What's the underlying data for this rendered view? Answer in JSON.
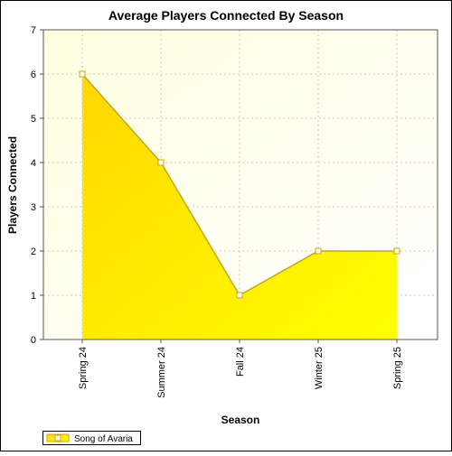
{
  "chart_data": {
    "type": "area",
    "title": "Average Players Connected By Season",
    "xlabel": "Season",
    "ylabel": "Players Connected",
    "categories": [
      "Spring 24",
      "Summer 24",
      "Fall 24",
      "Winter 25",
      "Spring 25"
    ],
    "series": [
      {
        "name": "Song of Avaria",
        "values": [
          6,
          4,
          1,
          2,
          2
        ]
      }
    ],
    "ylim": [
      0,
      7
    ],
    "yticks": [
      0,
      1,
      2,
      3,
      4,
      5,
      6,
      7
    ],
    "grid": true,
    "legend_position": "bottom-left",
    "colors": {
      "fill_top": "#ffd700",
      "fill_bottom": "#ffff00",
      "line": "#c8a800",
      "marker_fill": "#ffffff",
      "plot_bg_light": "#fffff2",
      "plot_bg_dark": "#ffffcc",
      "grid": "#c8c8c8"
    }
  }
}
